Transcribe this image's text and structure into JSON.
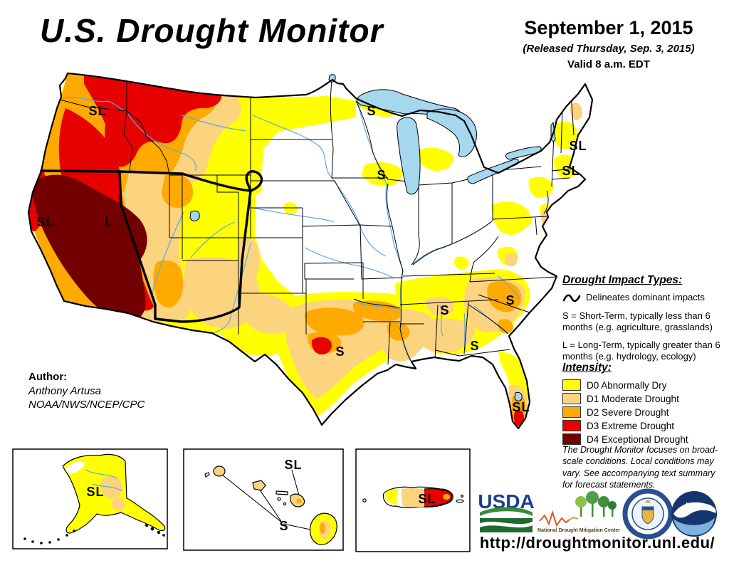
{
  "title": "U.S. Drought Monitor",
  "date_block": {
    "date": "September 1, 2015",
    "released": "(Released Thursday, Sep. 3, 2015)",
    "valid": "Valid 8 a.m. EDT"
  },
  "impact_types": {
    "heading": "Drought Impact Types:",
    "delineates": "Delineates dominant impacts",
    "short_term": "S = Short-Term, typically less than 6 months (e.g. agriculture, grasslands)",
    "long_term": "L = Long-Term, typically greater than 6 months (e.g. hydrology, ecology)"
  },
  "intensity": {
    "heading": "Intensity:",
    "items": [
      {
        "code": "D0",
        "label": "D0 Abnormally Dry",
        "color": "#FFFF00"
      },
      {
        "code": "D1",
        "label": "D1 Moderate Drought",
        "color": "#FCD37F"
      },
      {
        "code": "D2",
        "label": "D2 Severe Drought",
        "color": "#FFAA00"
      },
      {
        "code": "D3",
        "label": "D3 Extreme Drought",
        "color": "#E60000"
      },
      {
        "code": "D4",
        "label": "D4 Exceptional Drought",
        "color": "#730000"
      }
    ]
  },
  "disclaimer": "The Drought Monitor focuses on broad-scale conditions. Local conditions may vary. See accompanying text summary for forecast statements.",
  "author": {
    "heading": "Author:",
    "name": "Anthony Artusa",
    "org": "NOAA/NWS/NCEP/CPC"
  },
  "url": "http://droughtmonitor.unl.edu/",
  "logos": {
    "usda": "USDA",
    "ndmc_caption": "National Drought Mitigation Center",
    "noaa": "NOAA"
  },
  "map": {
    "water_color": "#A5D7EE",
    "river_color": "#5FA8E8",
    "impact_labels": [
      {
        "region": "pacific-northwest",
        "text": "SL"
      },
      {
        "region": "california",
        "text": "SL"
      },
      {
        "region": "nevada-great-basin",
        "text": "L"
      },
      {
        "region": "minnesota",
        "text": "S"
      },
      {
        "region": "wisconsin-iowa",
        "text": "S"
      },
      {
        "region": "texas",
        "text": "S"
      },
      {
        "region": "mississippi",
        "text": "S"
      },
      {
        "region": "south-carolina",
        "text": "S"
      },
      {
        "region": "alabama-georgia",
        "text": "S"
      },
      {
        "region": "south-florida",
        "text": "SL"
      },
      {
        "region": "new-england-north",
        "text": "SL"
      },
      {
        "region": "new-england-south",
        "text": "SL"
      },
      {
        "region": "alaska",
        "text": "SL"
      },
      {
        "region": "hawaii-maui",
        "text": "SL"
      },
      {
        "region": "hawaii-islands",
        "text": "S"
      },
      {
        "region": "puerto-rico",
        "text": "SL"
      }
    ]
  }
}
